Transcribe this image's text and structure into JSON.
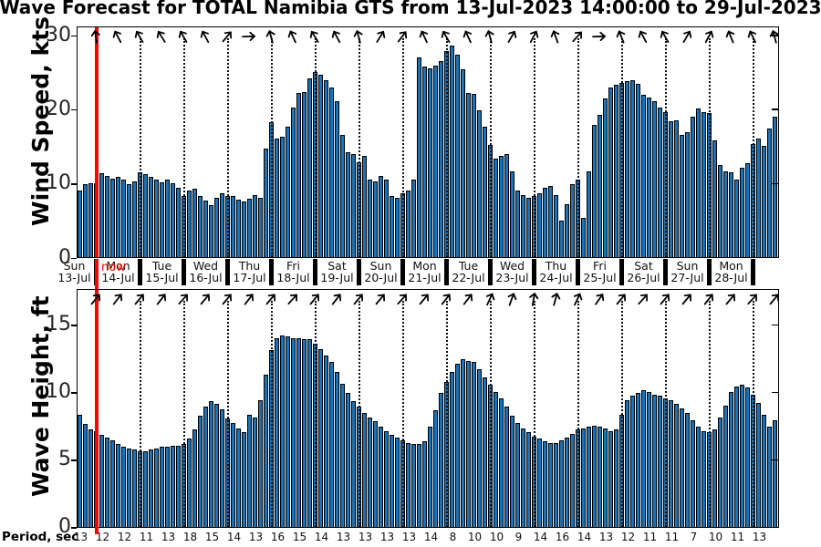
{
  "title": "Wave Forecast for TOTAL Namibia GTS from 13-Jul-2023 14:00:00 to 29-Jul-2023",
  "now_label": "now",
  "period_label": "Period, sec",
  "colors": {
    "bar_fill": "#1a73b9",
    "bar_edge": "#000000",
    "now_line": "#ff0000",
    "gridline": "#111111"
  },
  "days": [
    {
      "day": "Sun",
      "date": "13-Jul"
    },
    {
      "day": "Mon",
      "date": "14-Jul"
    },
    {
      "day": "Tue",
      "date": "15-Jul"
    },
    {
      "day": "Wed",
      "date": "16-Jul"
    },
    {
      "day": "Thu",
      "date": "17-Jul"
    },
    {
      "day": "Fri",
      "date": "18-Jul"
    },
    {
      "day": "Sat",
      "date": "19-Jul"
    },
    {
      "day": "Sun",
      "date": "20-Jul"
    },
    {
      "day": "Mon",
      "date": "21-Jul"
    },
    {
      "day": "Tue",
      "date": "22-Jul"
    },
    {
      "day": "Wed",
      "date": "23-Jul"
    },
    {
      "day": "Thu",
      "date": "24-Jul"
    },
    {
      "day": "Fri",
      "date": "25-Jul"
    },
    {
      "day": "Sat",
      "date": "26-Jul"
    },
    {
      "day": "Sun",
      "date": "27-Jul"
    },
    {
      "day": "Mon",
      "date": "28-Jul"
    }
  ],
  "chart_data": [
    {
      "type": "bar",
      "ylabel": "Wind Speed, kts",
      "yticks": [
        0,
        10,
        20,
        30
      ],
      "ylim": [
        0,
        31
      ],
      "x_start": "13-Jul-2023 14:00",
      "x_interval_hours": 3,
      "grid": "vertical-dotted-daily",
      "values": [
        9.0,
        9.8,
        10.0,
        10.0,
        11.3,
        11.0,
        10.6,
        10.8,
        10.4,
        9.9,
        10.2,
        11.5,
        11.2,
        10.8,
        10.4,
        10.1,
        10.4,
        10.0,
        9.4,
        8.2,
        9.0,
        9.2,
        8.2,
        7.6,
        7.0,
        8.0,
        8.6,
        8.2,
        8.3,
        7.7,
        7.5,
        7.9,
        8.4,
        8.0,
        14.6,
        18.2,
        16.0,
        16.3,
        17.6,
        20.2,
        22.2,
        22.3,
        24.1,
        25.0,
        24.6,
        23.9,
        22.9,
        21.0,
        16.5,
        14.1,
        13.9,
        12.8,
        13.6,
        10.4,
        10.2,
        11.0,
        10.4,
        8.2,
        8.0,
        8.6,
        9.0,
        10.4,
        27.0,
        25.7,
        25.5,
        25.8,
        26.5,
        27.8,
        28.5,
        27.3,
        25.3,
        22.2,
        22.0,
        19.8,
        17.6,
        15.1,
        13.3,
        13.7,
        13.9,
        11.6,
        9.0,
        8.4,
        8.0,
        8.2,
        8.6,
        9.4,
        9.6,
        8.4,
        4.9,
        7.1,
        9.8,
        10.4,
        5.3,
        11.6,
        17.8,
        19.2,
        21.4,
        22.9,
        23.3,
        23.5,
        23.7,
        23.9,
        23.4,
        21.9,
        21.5,
        21.0,
        20.2,
        19.6,
        18.3,
        18.4,
        16.5,
        16.9,
        19.0,
        20.0,
        19.6,
        19.4,
        15.7,
        12.4,
        11.6,
        11.5,
        10.4,
        12.0,
        12.7,
        15.3,
        16.0,
        15.0,
        17.3,
        19.0
      ],
      "arrow_directions_deg": [
        -8,
        -28,
        -30,
        -32,
        -30,
        -28,
        40,
        88,
        -15,
        -25,
        -32,
        -28,
        -15,
        32,
        38,
        -25,
        -30,
        -25,
        -15,
        30,
        28,
        -20,
        42,
        88,
        -22,
        -28,
        -30,
        30,
        28,
        -22,
        -26,
        -15
      ]
    },
    {
      "type": "bar",
      "ylabel": "Wave Height, ft",
      "yticks": [
        0,
        5,
        10,
        15
      ],
      "ylim": [
        0,
        17.6
      ],
      "x_start": "13-Jul-2023 14:00",
      "x_interval_hours": 3,
      "grid": "vertical-dotted-daily",
      "values": [
        8.3,
        7.6,
        7.2,
        7.1,
        6.8,
        6.6,
        6.4,
        6.1,
        5.9,
        5.8,
        5.7,
        5.6,
        5.6,
        5.7,
        5.8,
        5.9,
        5.9,
        6.0,
        6.0,
        6.1,
        6.5,
        7.2,
        8.2,
        8.9,
        9.3,
        9.1,
        8.7,
        8.0,
        7.7,
        7.3,
        7.0,
        8.3,
        8.1,
        9.4,
        11.3,
        13.1,
        14.0,
        14.2,
        14.1,
        14.0,
        14.0,
        13.9,
        13.9,
        13.6,
        13.2,
        12.7,
        12.2,
        11.5,
        10.6,
        9.9,
        9.3,
        8.9,
        8.4,
        8.1,
        7.8,
        7.4,
        7.1,
        6.8,
        6.6,
        6.4,
        6.2,
        6.1,
        6.1,
        6.3,
        7.4,
        8.6,
        9.9,
        10.7,
        11.5,
        12.1,
        12.4,
        12.3,
        12.2,
        11.7,
        11.1,
        10.5,
        10.0,
        9.5,
        8.9,
        8.2,
        7.7,
        7.3,
        7.0,
        6.7,
        6.5,
        6.3,
        6.2,
        6.2,
        6.4,
        6.6,
        6.9,
        7.2,
        7.3,
        7.4,
        7.5,
        7.4,
        7.3,
        7.1,
        7.2,
        8.3,
        9.4,
        9.7,
        9.9,
        10.1,
        10.0,
        9.8,
        9.7,
        9.5,
        9.4,
        9.1,
        8.8,
        8.4,
        7.9,
        7.4,
        7.1,
        7.0,
        7.2,
        8.1,
        9.0,
        10.0,
        10.4,
        10.5,
        10.3,
        9.8,
        9.2,
        8.3,
        7.4,
        7.9
      ],
      "arrow_directions_deg": [
        40,
        38,
        40,
        38,
        42,
        40,
        40,
        38,
        40,
        42,
        40,
        38,
        40,
        40,
        42,
        40,
        38,
        38,
        25,
        20,
        10,
        15,
        25,
        35,
        40,
        42,
        40,
        40,
        38,
        40,
        42,
        40
      ],
      "period_sec": [
        13,
        12,
        12,
        11,
        13,
        18,
        15,
        14,
        13,
        16,
        15,
        14,
        13,
        13,
        13,
        13,
        14,
        8,
        10,
        10,
        9,
        14,
        16,
        14,
        13,
        12,
        11,
        11,
        7,
        10,
        11,
        13
      ]
    }
  ]
}
